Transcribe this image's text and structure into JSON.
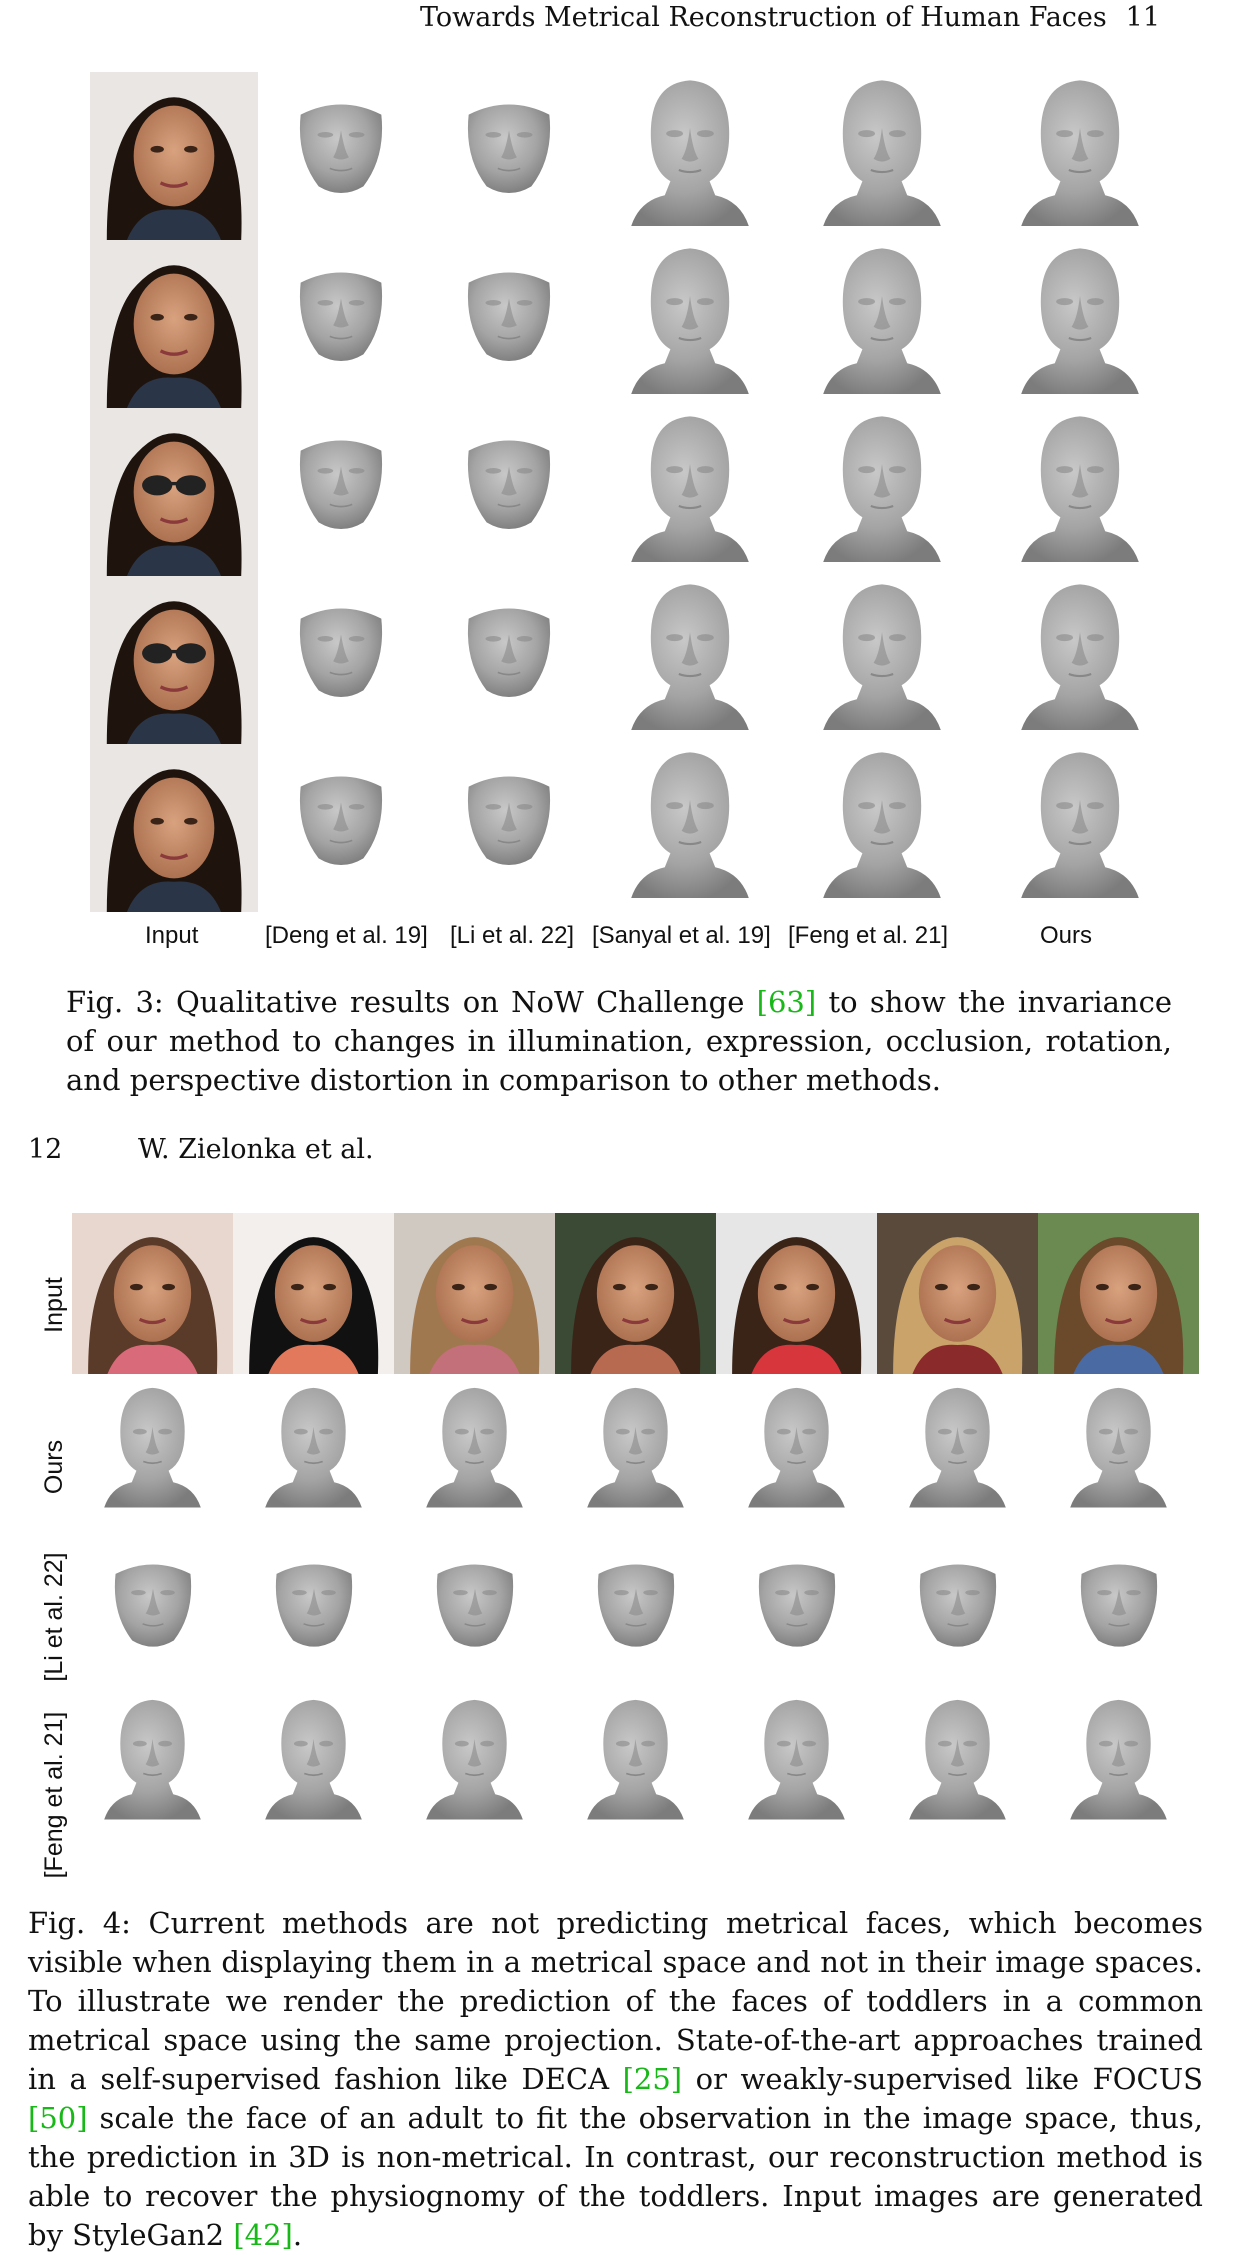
{
  "page_header": {
    "title": "Towards Metrical Reconstruction of Human Faces",
    "page_number": "11"
  },
  "figure3": {
    "column_labels": [
      "Input",
      "[Deng et al. 19]",
      "[Li et al. 22]",
      "[Sanyal et al. 19]",
      "[Feng et al. 21]",
      "Ours"
    ],
    "caption_prefix": "Fig. 3: Qualitative results on NoW Challenge ",
    "caption_cite": "[63]",
    "caption_rest": " to show the invariance of our method to changes in illumination, expression, occlusion, rotation, and perspective distortion in comparison to other methods."
  },
  "page2_header": {
    "page_number": "12",
    "authors": "W. Zielonka et al."
  },
  "figure4": {
    "row_labels": [
      "Input",
      "Ours",
      "[Li et al. 22]",
      "[Feng et al. 21]"
    ],
    "caption_parts": [
      "Fig. 4: Current methods are not predicting metrical faces, which becomes visible when displaying them in a metrical space and not in their image spaces. To illustrate we render the prediction of the faces of toddlers in a common metrical space using the same projection. State-of-the-art approaches trained in a self-supervised fashion like DECA ",
      "[25]",
      " or weakly-supervised like FOCUS ",
      "[50]",
      " scale the face of an adult to fit the observation in the image space, thus, the prediction in 3D is non-metrical. In contrast, our reconstruction method is able to recover the physiognomy of the toddlers. Input images are generated by StyleGan2 ",
      "[42]",
      "."
    ]
  },
  "colors": {
    "citation": "#18b818",
    "mesh": "#9e9e9e",
    "figure_background": "#f6f6f6"
  }
}
